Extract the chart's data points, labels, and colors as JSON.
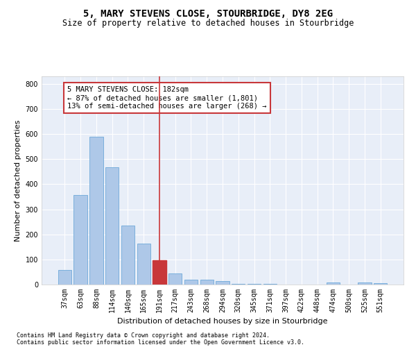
{
  "title": "5, MARY STEVENS CLOSE, STOURBRIDGE, DY8 2EG",
  "subtitle": "Size of property relative to detached houses in Stourbridge",
  "xlabel": "Distribution of detached houses by size in Stourbridge",
  "ylabel": "Number of detached properties",
  "footer1": "Contains HM Land Registry data © Crown copyright and database right 2024.",
  "footer2": "Contains public sector information licensed under the Open Government Licence v3.0.",
  "bar_labels": [
    "37sqm",
    "63sqm",
    "88sqm",
    "114sqm",
    "140sqm",
    "165sqm",
    "191sqm",
    "217sqm",
    "243sqm",
    "268sqm",
    "294sqm",
    "320sqm",
    "345sqm",
    "371sqm",
    "397sqm",
    "422sqm",
    "448sqm",
    "474sqm",
    "500sqm",
    "525sqm",
    "551sqm"
  ],
  "bar_values": [
    57,
    356,
    590,
    468,
    235,
    163,
    96,
    45,
    20,
    19,
    15,
    4,
    4,
    3,
    1,
    0,
    0,
    8,
    0,
    8,
    5
  ],
  "bar_color": "#aec8e8",
  "bar_edge_color": "#5a9fd4",
  "highlight_bar_index": 6,
  "highlight_bar_color": "#c8373a",
  "highlight_bar_edge_color": "#c8373a",
  "vline_color": "#c8373a",
  "annotation_text": "5 MARY STEVENS CLOSE: 182sqm\n← 87% of detached houses are smaller (1,801)\n13% of semi-detached houses are larger (268) →",
  "annotation_box_color": "white",
  "annotation_box_edge": "#c8373a",
  "ylim": [
    0,
    830
  ],
  "yticks": [
    0,
    100,
    200,
    300,
    400,
    500,
    600,
    700,
    800
  ],
  "axes_bg": "#e8eef8",
  "grid_color": "white",
  "title_fontsize": 10,
  "subtitle_fontsize": 8.5,
  "xlabel_fontsize": 8,
  "ylabel_fontsize": 8,
  "annot_fontsize": 7.5,
  "tick_fontsize": 7
}
